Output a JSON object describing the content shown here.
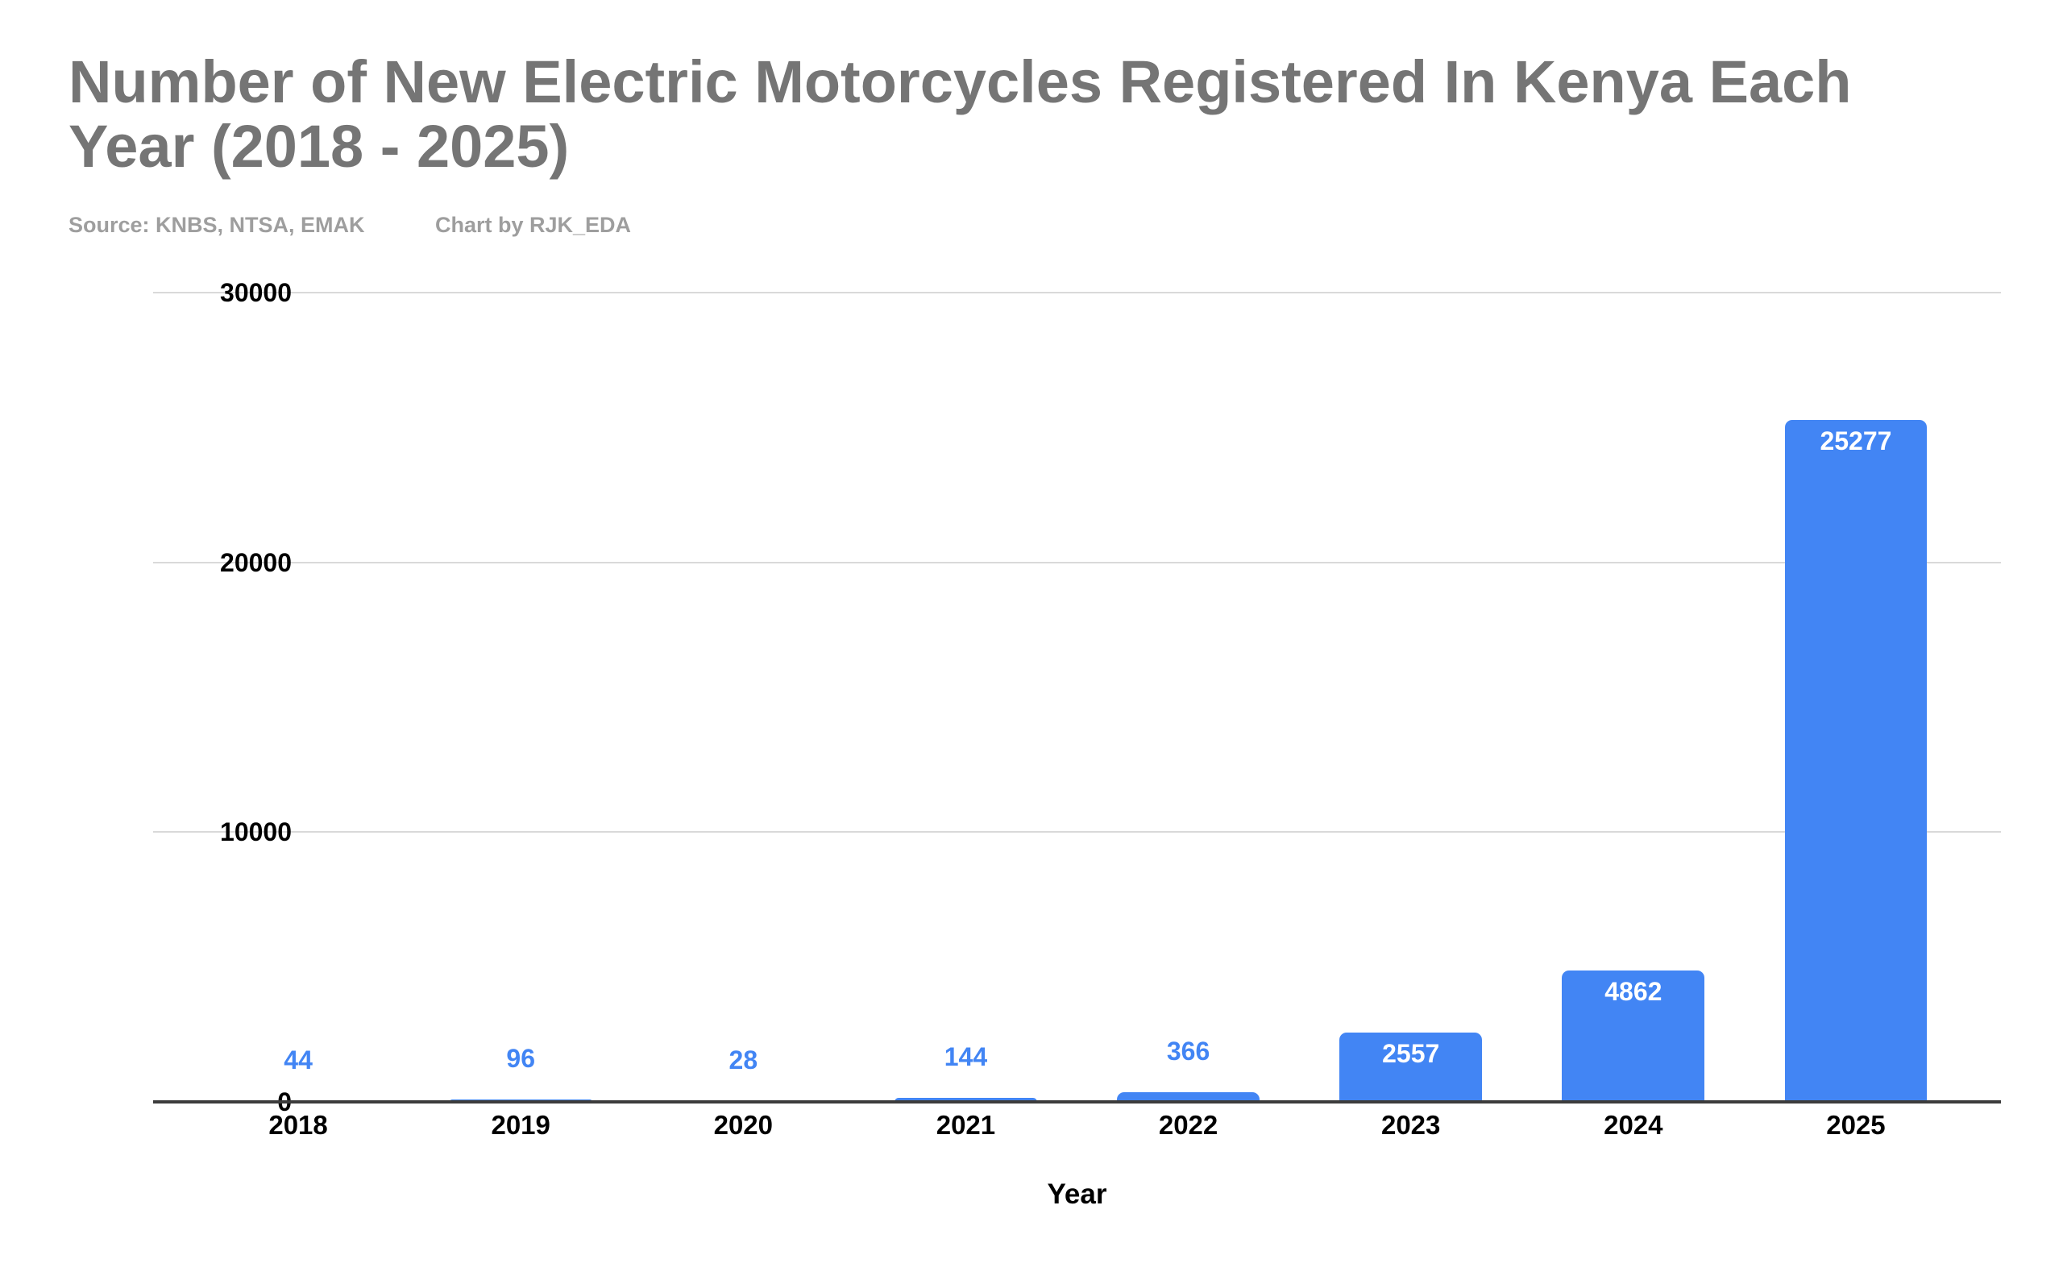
{
  "page": {
    "background": "#ffffff"
  },
  "header": {
    "title": "Number of New Electric Motorcycles Registered In Kenya Each Year (2018 - 2025)",
    "title_lines": [
      "Number of New Electric Motorcycles Registered In Kenya Each",
      "Year (2018 - 2025)"
    ],
    "source_note": "Source: KNBS, NTSA, EMAK",
    "credit_note": "Chart by RJK_EDA"
  },
  "colors": {
    "bar": "#4285f4",
    "value_label_outside": "#4285f4",
    "value_label_inside": "#ffffff",
    "title_text": "#757575",
    "subtitle_text": "#9e9e9e",
    "axis_text": "#000000",
    "gridline": "#d9d9d9",
    "axis_baseline": "#3c3c3c"
  },
  "chart_data": {
    "type": "bar",
    "title": "Number of New Electric Motorcycles Registered In Kenya Each Year (2018 - 2025)",
    "categories": [
      "2018",
      "2019",
      "2020",
      "2021",
      "2022",
      "2023",
      "2024",
      "2025"
    ],
    "values": [
      44,
      96,
      28,
      144,
      366,
      2557,
      4862,
      25277
    ],
    "value_labels": [
      "44",
      "96",
      "28",
      "144",
      "366",
      "2557",
      "4862",
      "25277"
    ],
    "value_label_placement": [
      "above",
      "above",
      "above",
      "above",
      "above",
      "inside",
      "inside",
      "inside"
    ],
    "xlabel": "Year",
    "ylabel": "",
    "ylim": [
      0,
      30000
    ],
    "yticks": [
      0,
      10000,
      20000,
      30000
    ],
    "grid": true,
    "legend": "none",
    "bar_color": "#4285f4"
  }
}
